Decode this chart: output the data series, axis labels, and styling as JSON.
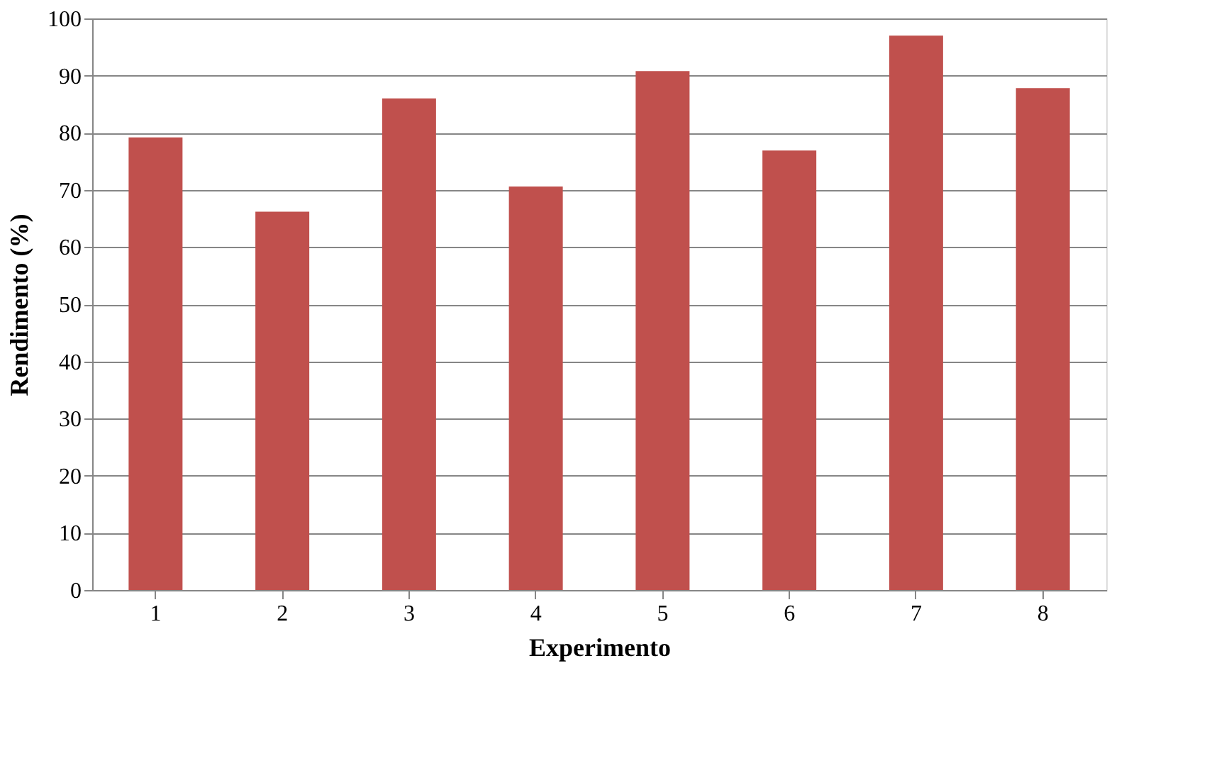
{
  "chart_data": {
    "type": "bar",
    "xlabel": "Experimento",
    "ylabel": "Rendimento (%)",
    "categories": [
      "1",
      "2",
      "3",
      "4",
      "5",
      "6",
      "7",
      "8"
    ],
    "values": [
      79.2,
      66.2,
      86.0,
      70.6,
      90.8,
      76.9,
      97.0,
      87.8
    ],
    "color": "#c0504d",
    "ylim": [
      0,
      100
    ],
    "yticks": [
      0,
      10,
      20,
      30,
      40,
      50,
      60,
      70,
      80,
      90,
      100
    ],
    "grid": "y"
  }
}
